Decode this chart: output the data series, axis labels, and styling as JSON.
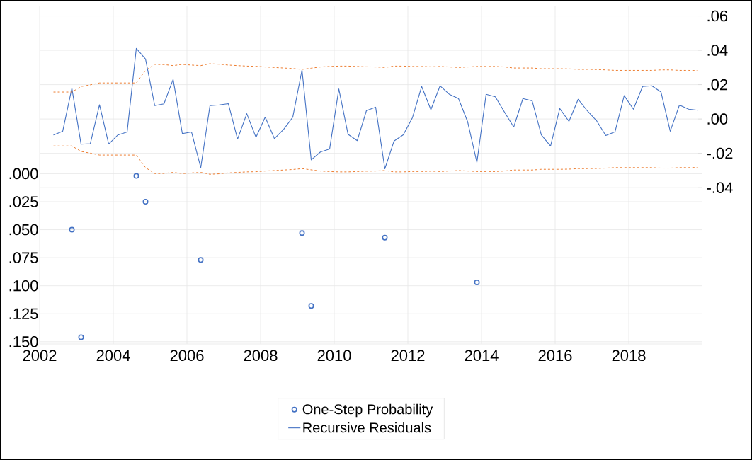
{
  "chart_data": {
    "type": "line",
    "x": [
      2002.375,
      2002.625,
      2002.875,
      2003.125,
      2003.375,
      2003.625,
      2003.875,
      2004.125,
      2004.375,
      2004.625,
      2004.875,
      2005.125,
      2005.375,
      2005.625,
      2005.875,
      2006.125,
      2006.375,
      2006.625,
      2006.875,
      2007.125,
      2007.375,
      2007.625,
      2007.875,
      2008.125,
      2008.375,
      2008.625,
      2008.875,
      2009.125,
      2009.375,
      2009.625,
      2009.875,
      2010.125,
      2010.375,
      2010.625,
      2010.875,
      2011.125,
      2011.375,
      2011.625,
      2011.875,
      2012.125,
      2012.375,
      2012.625,
      2012.875,
      2013.125,
      2013.375,
      2013.625,
      2013.875,
      2014.125,
      2014.375,
      2014.625,
      2014.875,
      2015.125,
      2015.375,
      2015.625,
      2015.875,
      2016.125,
      2016.375,
      2016.625,
      2016.875,
      2017.125,
      2017.375,
      2017.625,
      2017.875,
      2018.125,
      2018.375,
      2018.625,
      2018.875,
      2019.125,
      2019.375,
      2019.625,
      2019.875
    ],
    "series": [
      {
        "name": "One-Step Probability",
        "type": "scatter",
        "axis": "y",
        "marker": "circle",
        "color": "#4472c4",
        "x": [
          2002.875,
          2003.125,
          2004.625,
          2004.875,
          2006.375,
          2009.125,
          2009.375,
          2011.375,
          2013.875
        ],
        "values": [
          0.05,
          0.146,
          0.002,
          0.025,
          0.077,
          0.053,
          0.118,
          0.057,
          0.097
        ]
      },
      {
        "name": "Recursive Residuals",
        "axis": "y2",
        "marker": "none",
        "line_style": "solid",
        "color": "#4472c4",
        "values": [
          -0.0093,
          -0.0072,
          0.0179,
          -0.0147,
          -0.0144,
          0.0083,
          -0.0146,
          -0.0093,
          -0.0076,
          0.0411,
          0.0349,
          0.0078,
          0.0088,
          0.0231,
          -0.0085,
          -0.0076,
          -0.0283,
          0.0078,
          0.0082,
          0.0089,
          -0.0117,
          0.0031,
          -0.0107,
          0.0011,
          -0.0114,
          -0.0061,
          0.0011,
          0.0286,
          -0.0238,
          -0.0192,
          -0.0175,
          0.0175,
          -0.0089,
          -0.0126,
          0.0049,
          0.0069,
          -0.029,
          -0.0128,
          -0.0092,
          0.0008,
          0.0189,
          0.0054,
          0.0193,
          0.0144,
          0.0119,
          -0.0017,
          -0.0253,
          0.0144,
          0.0129,
          0.004,
          -0.0047,
          0.0119,
          0.0106,
          -0.0093,
          -0.0158,
          0.0061,
          -0.0014,
          0.0115,
          0.0047,
          -0.001,
          -0.0096,
          -0.0075,
          0.0136,
          0.0057,
          0.0189,
          0.0193,
          0.0157,
          -0.0071,
          0.0081,
          0.0057,
          0.0051
        ]
      },
      {
        "axis": "y2",
        "marker": "none",
        "line_style": "dashed",
        "color": "#ed7d31",
        "values": [
          0.0157,
          0.0157,
          0.0157,
          0.0189,
          0.0199,
          0.021,
          0.021,
          0.021,
          0.021,
          0.021,
          0.0283,
          0.0318,
          0.0317,
          0.0311,
          0.0318,
          0.0314,
          0.0311,
          0.0322,
          0.0319,
          0.0314,
          0.0311,
          0.0308,
          0.0307,
          0.0303,
          0.03,
          0.0297,
          0.0294,
          0.0289,
          0.0296,
          0.0303,
          0.0306,
          0.0308,
          0.0308,
          0.0306,
          0.0304,
          0.0303,
          0.03,
          0.0308,
          0.0308,
          0.0306,
          0.0306,
          0.0304,
          0.0306,
          0.0303,
          0.03,
          0.0303,
          0.0306,
          0.0306,
          0.0306,
          0.0303,
          0.0297,
          0.0297,
          0.0297,
          0.0293,
          0.0293,
          0.0293,
          0.0292,
          0.0289,
          0.0289,
          0.0288,
          0.0286,
          0.0283,
          0.0283,
          0.0283,
          0.0283,
          0.0283,
          0.0286,
          0.0286,
          0.0283,
          0.0283,
          0.0282
        ]
      },
      {
        "axis": "y2",
        "marker": "none",
        "line_style": "dashed",
        "color": "#ed7d31",
        "values": [
          -0.0157,
          -0.0157,
          -0.0157,
          -0.0189,
          -0.0199,
          -0.021,
          -0.021,
          -0.021,
          -0.021,
          -0.021,
          -0.0283,
          -0.0318,
          -0.0317,
          -0.0311,
          -0.0318,
          -0.0314,
          -0.0311,
          -0.0322,
          -0.0319,
          -0.0314,
          -0.0311,
          -0.0308,
          -0.0307,
          -0.0303,
          -0.03,
          -0.0297,
          -0.0294,
          -0.0289,
          -0.0296,
          -0.0303,
          -0.0306,
          -0.0308,
          -0.0308,
          -0.0306,
          -0.0304,
          -0.0303,
          -0.03,
          -0.0308,
          -0.0308,
          -0.0306,
          -0.0306,
          -0.0304,
          -0.0306,
          -0.0303,
          -0.03,
          -0.0303,
          -0.0306,
          -0.0306,
          -0.0306,
          -0.0303,
          -0.0297,
          -0.0297,
          -0.0297,
          -0.0293,
          -0.0293,
          -0.0293,
          -0.0292,
          -0.0289,
          -0.0289,
          -0.0288,
          -0.0286,
          -0.0283,
          -0.0283,
          -0.0283,
          -0.0283,
          -0.0283,
          -0.0286,
          -0.0286,
          -0.0283,
          -0.0283,
          -0.0282
        ]
      }
    ],
    "xlim": [
      2002.0,
      2020.0
    ],
    "xticks": [
      2002,
      2004,
      2006,
      2008,
      2010,
      2012,
      2014,
      2016,
      2018
    ],
    "ylim": [
      0.152,
      -0.15
    ],
    "yticks": [
      {
        "value": 0,
        "label": ".000"
      },
      {
        "value": 0.025,
        "label": ".025"
      },
      {
        "value": 0.05,
        "label": ".050"
      },
      {
        "value": 0.075,
        "label": ".075"
      },
      {
        "value": 0.1,
        "label": ".100"
      },
      {
        "value": 0.125,
        "label": ".125"
      },
      {
        "value": 0.15,
        "label": ".150"
      }
    ],
    "y2lim": [
      -0.131,
      0.066
    ],
    "y2ticks": [
      {
        "value": -0.04,
        "label": "-.04"
      },
      {
        "value": -0.02,
        "label": "-.02"
      },
      {
        "value": 0,
        "label": ".00"
      },
      {
        "value": 0.02,
        "label": ".02"
      },
      {
        "value": 0.04,
        "label": ".04"
      },
      {
        "value": 0.06,
        "label": ".06"
      }
    ],
    "grid": true,
    "legend": "bottom"
  }
}
